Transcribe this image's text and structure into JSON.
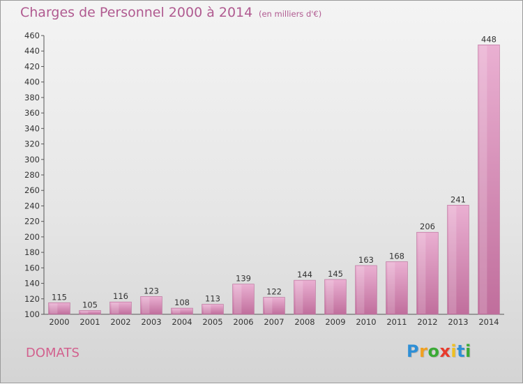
{
  "header": {
    "title": "Charges de Personnel 2000 à 2014",
    "subtitle": "(en milliers d'€)"
  },
  "footer": {
    "city": "DOMATS",
    "logo_letters": [
      "P",
      "r",
      "o",
      "x",
      "i",
      "t",
      "i"
    ],
    "logo_colors": [
      "#2e8fd6",
      "#f0a020",
      "#3aaa35",
      "#e83a2c",
      "#f0c020",
      "#2e8fd6",
      "#3aaa35"
    ]
  },
  "colors": {
    "bar_light": "#eab0d2",
    "bar_dark": "#c06e9c",
    "accent": "#b05a90"
  },
  "chart_data": {
    "type": "bar",
    "title": "Charges de Personnel 2000 à 2014",
    "subtitle": "(en milliers d'€)",
    "categories": [
      "2000",
      "2001",
      "2002",
      "2003",
      "2004",
      "2005",
      "2006",
      "2007",
      "2008",
      "2009",
      "2010",
      "2011",
      "2012",
      "2013",
      "2014"
    ],
    "values": [
      115,
      105,
      116,
      123,
      108,
      113,
      139,
      122,
      144,
      145,
      163,
      168,
      206,
      241,
      448
    ],
    "ylim": [
      100,
      460
    ],
    "yticks": [
      100,
      120,
      140,
      160,
      180,
      200,
      220,
      240,
      260,
      280,
      300,
      320,
      340,
      360,
      380,
      400,
      420,
      440,
      460
    ],
    "grid": false,
    "legend": "none"
  }
}
